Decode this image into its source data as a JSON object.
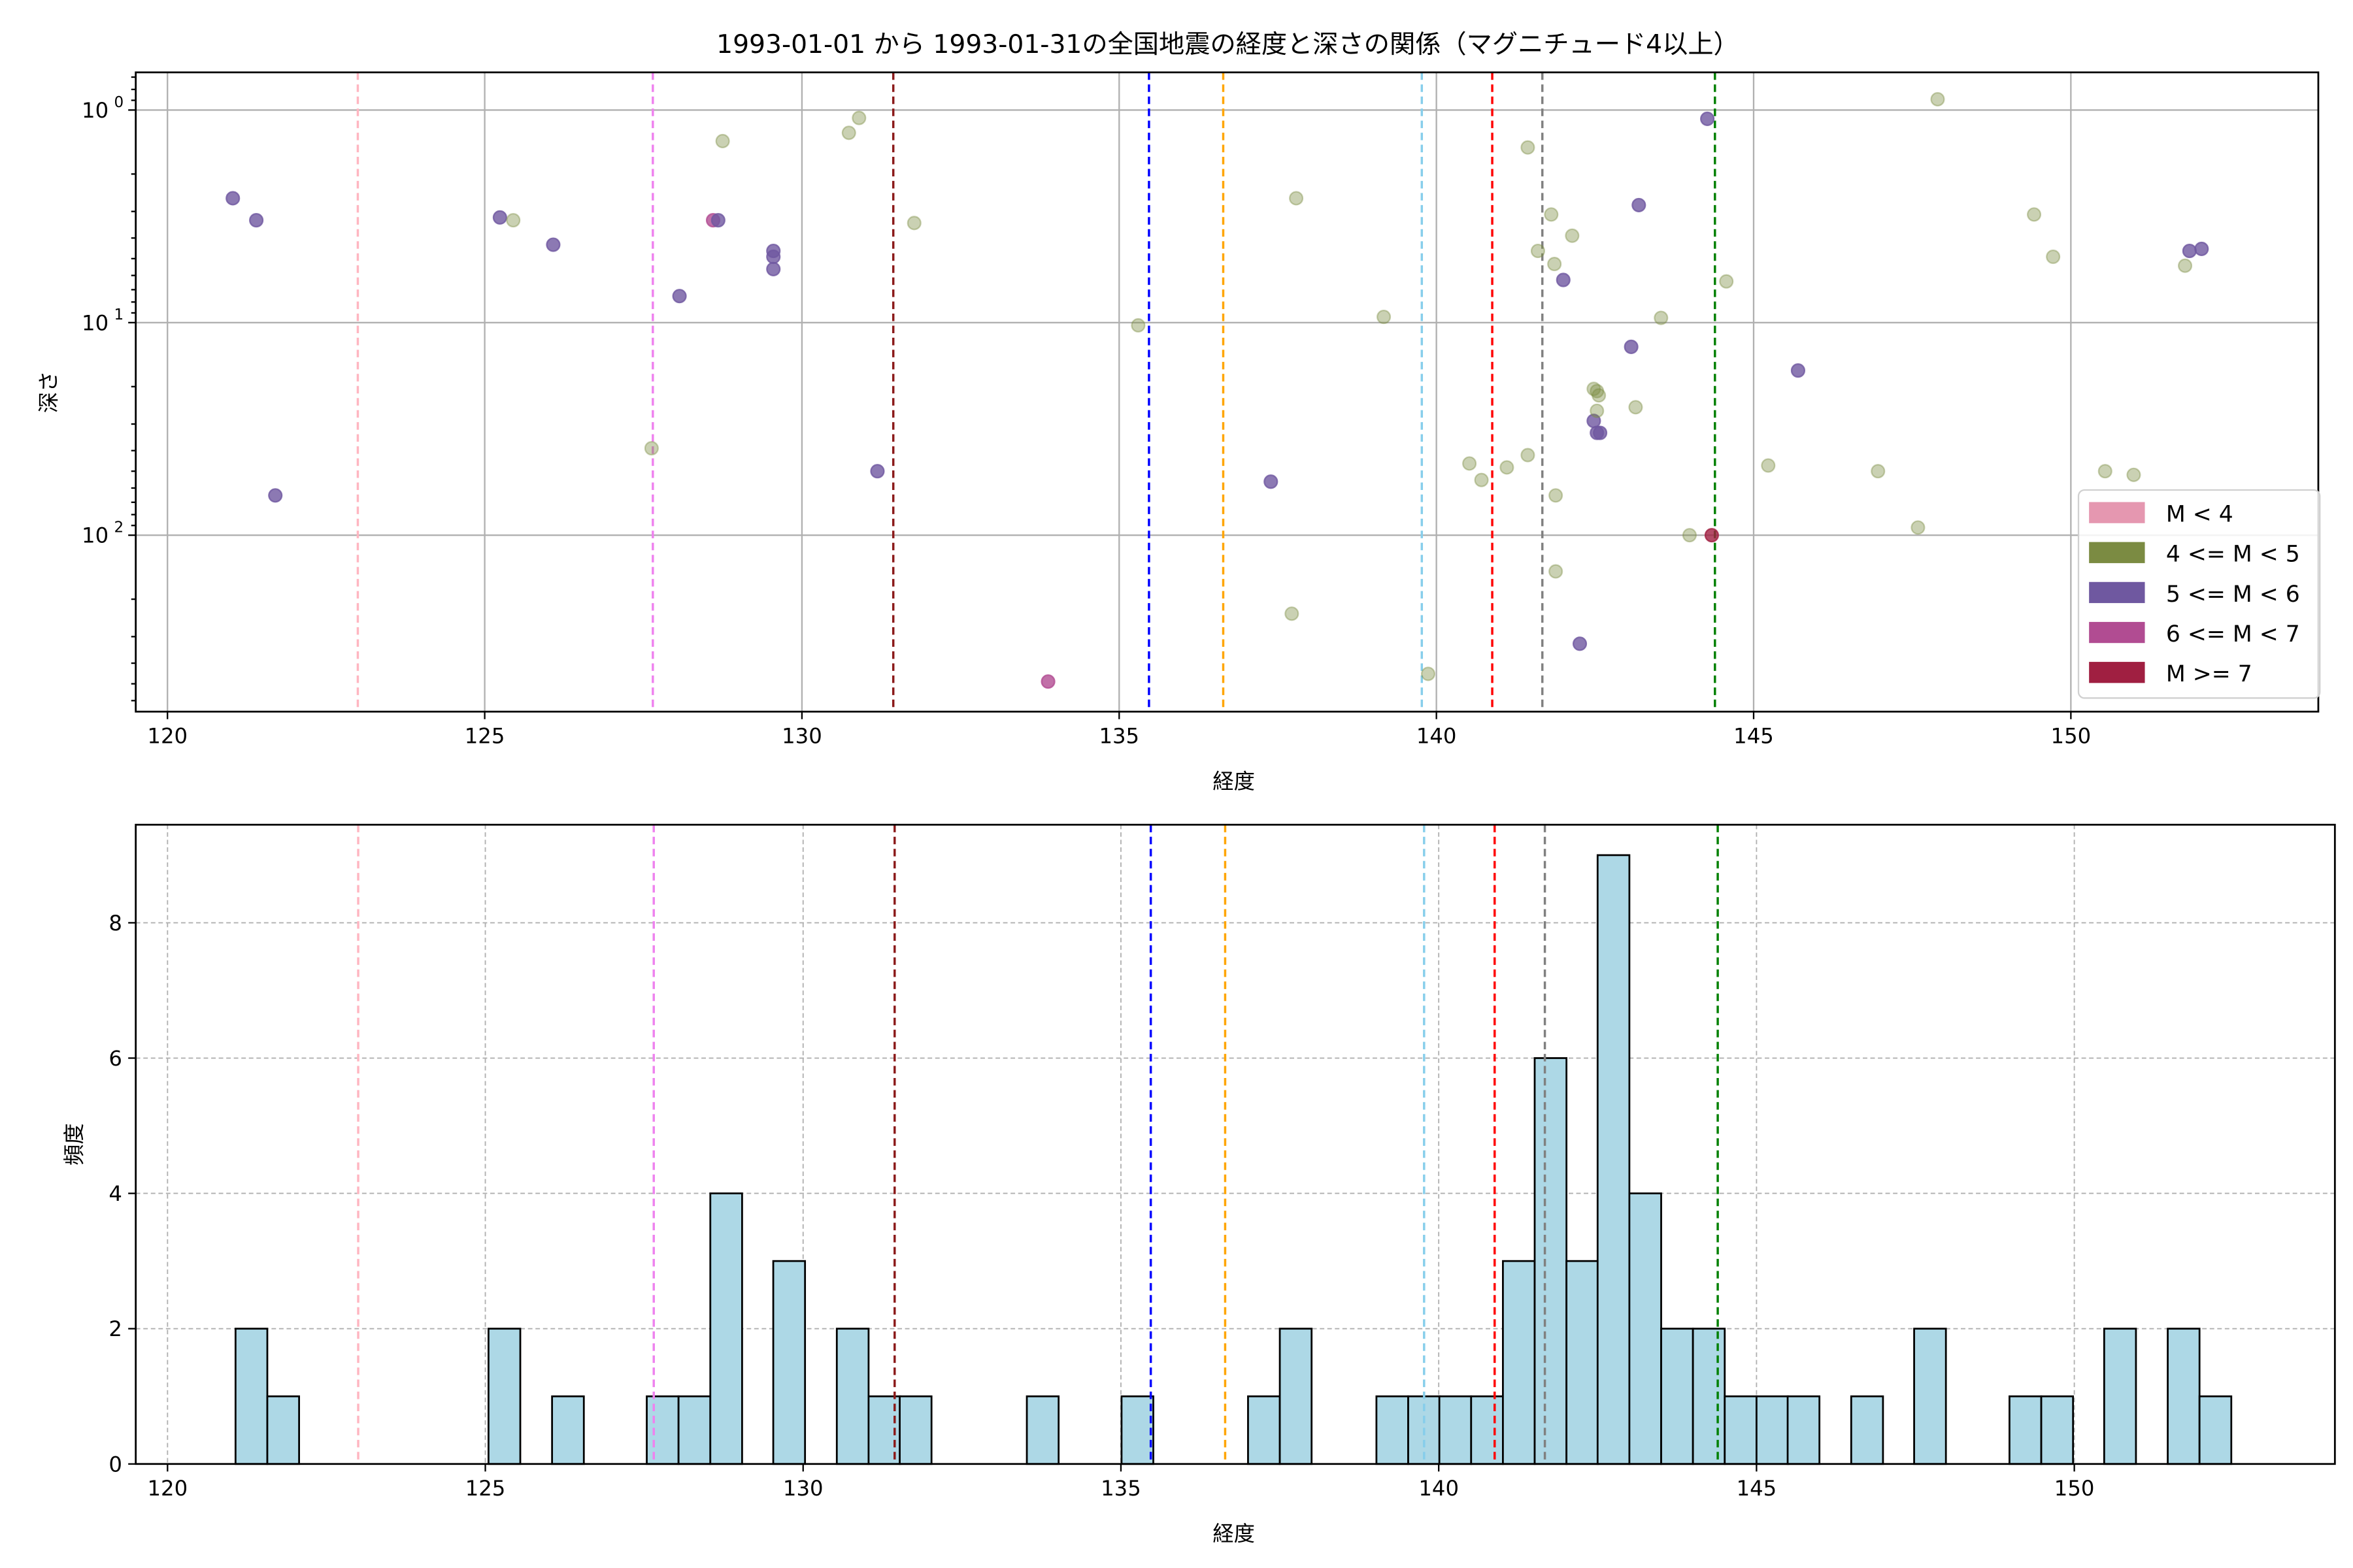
{
  "chart_data": [
    {
      "type": "scatter",
      "title": "1993-01-01 から 1993-01-31の全国地震の経度と深さの関係（マグニチュード4以上）",
      "xlabel": "経度",
      "ylabel": "深さ",
      "xlim": [
        119.5,
        153.9
      ],
      "ylim": [
        0.665,
        676
      ],
      "yscale": "log",
      "yinverted": true,
      "xticks": [
        120,
        125,
        130,
        135,
        140,
        145,
        150
      ],
      "xtick_labels": [
        "120",
        "125",
        "130",
        "135",
        "140",
        "145",
        "150"
      ],
      "yticks": [
        1,
        10,
        100
      ],
      "ytick_labels": [
        {
          "base": "10",
          "exp": "0"
        },
        {
          "base": "10",
          "exp": "1"
        },
        {
          "base": "10",
          "exp": "2"
        }
      ],
      "grid": true,
      "legend_position": "lower-right",
      "legend": [
        {
          "label": "M < 4",
          "color": "#e597b0"
        },
        {
          "label": "4 <= M < 5",
          "color": "#7b8b42"
        },
        {
          "label": "5 <= M < 6",
          "color": "#6f58a0"
        },
        {
          "label": "6 <= M < 7",
          "color": "#b14c92"
        },
        {
          "label": "M >= 7",
          "color": "#a01f41"
        }
      ],
      "points": [
        [
          121.03,
          2.6,
          2
        ],
        [
          121.4,
          3.3,
          2
        ],
        [
          121.7,
          65,
          2
        ],
        [
          125.24,
          3.2,
          2
        ],
        [
          125.45,
          3.3,
          1
        ],
        [
          126.08,
          4.3,
          2
        ],
        [
          127.63,
          39,
          1
        ],
        [
          128.07,
          7.5,
          2
        ],
        [
          128.6,
          3.3,
          3
        ],
        [
          128.68,
          3.3,
          2
        ],
        [
          128.75,
          1.4,
          1
        ],
        [
          129.55,
          4.6,
          2
        ],
        [
          129.55,
          4.9,
          2
        ],
        [
          129.55,
          5.6,
          2
        ],
        [
          130.74,
          1.28,
          1
        ],
        [
          130.9,
          1.09,
          1
        ],
        [
          131.19,
          50,
          2
        ],
        [
          131.77,
          3.4,
          1
        ],
        [
          133.88,
          488,
          3
        ],
        [
          135.3,
          10.3,
          1
        ],
        [
          137.39,
          56,
          2
        ],
        [
          137.72,
          234,
          1
        ],
        [
          137.79,
          2.6,
          1
        ],
        [
          139.17,
          9.4,
          1
        ],
        [
          139.87,
          449,
          1
        ],
        [
          140.52,
          46,
          1
        ],
        [
          140.71,
          55,
          1
        ],
        [
          141.11,
          48,
          1
        ],
        [
          141.44,
          1.5,
          1
        ],
        [
          141.44,
          42,
          1
        ],
        [
          141.6,
          4.6,
          1
        ],
        [
          141.81,
          3.1,
          1
        ],
        [
          141.86,
          5.3,
          1
        ],
        [
          141.88,
          65,
          1
        ],
        [
          141.88,
          148,
          1
        ],
        [
          142.0,
          6.3,
          2
        ],
        [
          142.14,
          3.9,
          1
        ],
        [
          142.26,
          324,
          2
        ],
        [
          142.48,
          20.5,
          1
        ],
        [
          142.53,
          21,
          1
        ],
        [
          142.56,
          22,
          1
        ],
        [
          142.48,
          29,
          2
        ],
        [
          142.53,
          26,
          1
        ],
        [
          142.53,
          33,
          2
        ],
        [
          142.58,
          33,
          2
        ],
        [
          143.07,
          13,
          2
        ],
        [
          143.14,
          25,
          1
        ],
        [
          143.19,
          2.8,
          2
        ],
        [
          143.54,
          9.5,
          1
        ],
        [
          143.99,
          100,
          1
        ],
        [
          144.27,
          1.1,
          2
        ],
        [
          144.34,
          100,
          4
        ],
        [
          144.57,
          6.4,
          1
        ],
        [
          145.23,
          47,
          1
        ],
        [
          145.7,
          16.8,
          2
        ],
        [
          146.96,
          50,
          1
        ],
        [
          147.59,
          92,
          1
        ],
        [
          147.9,
          0.89,
          1
        ],
        [
          149.42,
          3.1,
          1
        ],
        [
          149.72,
          4.9,
          1
        ],
        [
          150.54,
          50,
          1
        ],
        [
          150.99,
          52,
          1
        ],
        [
          151.8,
          5.4,
          1
        ],
        [
          151.87,
          4.6,
          2
        ],
        [
          152.06,
          4.5,
          2
        ]
      ],
      "vlines": [
        {
          "x": 123.0,
          "color": "#ffb6c1"
        },
        {
          "x": 127.65,
          "color": "#ee82ee"
        },
        {
          "x": 131.44,
          "color": "#8b1a1a"
        },
        {
          "x": 135.47,
          "color": "#0000ff"
        },
        {
          "x": 136.64,
          "color": "#ffa500"
        },
        {
          "x": 139.77,
          "color": "#87ceeb"
        },
        {
          "x": 140.88,
          "color": "#ff0000"
        },
        {
          "x": 141.67,
          "color": "#808080"
        },
        {
          "x": 144.39,
          "color": "#008000"
        }
      ]
    },
    {
      "type": "bar",
      "subtype": "histogram",
      "xlabel": "経度",
      "ylabel": "頻度",
      "xlim": [
        119.5,
        154.1
      ],
      "ylim": [
        0,
        9.45
      ],
      "xticks": [
        120,
        125,
        130,
        135,
        140,
        145,
        150
      ],
      "xtick_labels": [
        "120",
        "125",
        "130",
        "135",
        "140",
        "145",
        "150"
      ],
      "yticks": [
        0,
        2,
        4,
        6,
        8
      ],
      "ytick_labels": [
        "0",
        "2",
        "4",
        "6",
        "8"
      ],
      "grid": true,
      "bar_color": "#add8e6",
      "bin_width": 0.5,
      "bins": [
        [
          121.07,
          2
        ],
        [
          121.57,
          1
        ],
        [
          125.05,
          2
        ],
        [
          126.05,
          1
        ],
        [
          127.54,
          1
        ],
        [
          128.04,
          1
        ],
        [
          128.54,
          4
        ],
        [
          129.53,
          3
        ],
        [
          130.53,
          2
        ],
        [
          131.03,
          1
        ],
        [
          131.52,
          1
        ],
        [
          133.52,
          1
        ],
        [
          135.01,
          1
        ],
        [
          137.0,
          1
        ],
        [
          137.5,
          2
        ],
        [
          139.02,
          1
        ],
        [
          139.52,
          1
        ],
        [
          140.01,
          1
        ],
        [
          140.51,
          1
        ],
        [
          141.01,
          3
        ],
        [
          141.51,
          6
        ],
        [
          142.01,
          3
        ],
        [
          142.5,
          9
        ],
        [
          143.0,
          4
        ],
        [
          143.5,
          2
        ],
        [
          144.0,
          2
        ],
        [
          144.5,
          1
        ],
        [
          145.0,
          1
        ],
        [
          145.49,
          1
        ],
        [
          146.49,
          1
        ],
        [
          147.48,
          2
        ],
        [
          148.98,
          1
        ],
        [
          149.48,
          1
        ],
        [
          150.47,
          2
        ],
        [
          151.47,
          2
        ],
        [
          151.97,
          1
        ]
      ],
      "vlines": [
        {
          "x": 123.0,
          "color": "#ffb6c1"
        },
        {
          "x": 127.65,
          "color": "#ee82ee"
        },
        {
          "x": 131.44,
          "color": "#8b1a1a"
        },
        {
          "x": 135.47,
          "color": "#0000ff"
        },
        {
          "x": 136.64,
          "color": "#ffa500"
        },
        {
          "x": 139.77,
          "color": "#87ceeb"
        },
        {
          "x": 140.88,
          "color": "#ff0000"
        },
        {
          "x": 141.67,
          "color": "#808080"
        },
        {
          "x": 144.39,
          "color": "#008000"
        }
      ]
    }
  ]
}
